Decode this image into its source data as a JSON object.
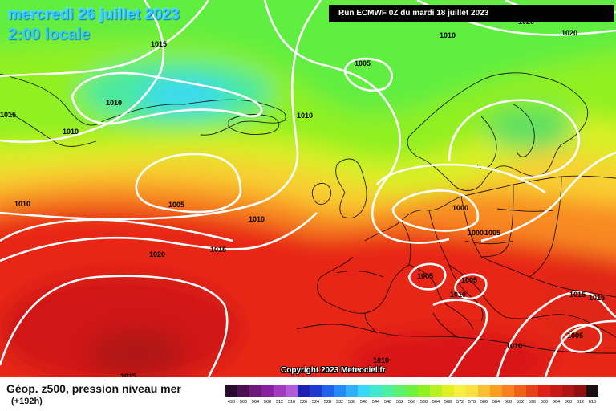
{
  "header": {
    "date": "mercredi 26 juillet 2023",
    "time": "2:00 locale",
    "run": "Run ECMWF 0Z du mardi 18 juillet 2023"
  },
  "footer": {
    "copyright": "Copyright 2023 Meteociel.fr"
  },
  "legend": {
    "title": "Géop. z500, pression niveau mer",
    "subtitle": "(+192h)",
    "steps": [
      {
        "label": "496",
        "color": "#2a0a2e"
      },
      {
        "label": "500",
        "color": "#4b1050"
      },
      {
        "label": "504",
        "color": "#6e1a7a"
      },
      {
        "label": "508",
        "color": "#8a1ea0"
      },
      {
        "label": "512",
        "color": "#a23ac0"
      },
      {
        "label": "516",
        "color": "#b25ad8"
      },
      {
        "label": "520",
        "color": "#2020b0"
      },
      {
        "label": "524",
        "color": "#2038d0"
      },
      {
        "label": "528",
        "color": "#2060ec"
      },
      {
        "label": "532",
        "color": "#2888f8"
      },
      {
        "label": "536",
        "color": "#30b0f8"
      },
      {
        "label": "540",
        "color": "#38d8f8"
      },
      {
        "label": "544",
        "color": "#40e8d0"
      },
      {
        "label": "548",
        "color": "#48f0a0"
      },
      {
        "label": "552",
        "color": "#60f070"
      },
      {
        "label": "556",
        "color": "#70f040"
      },
      {
        "label": "560",
        "color": "#90f020"
      },
      {
        "label": "564",
        "color": "#b8f020"
      },
      {
        "label": "568",
        "color": "#e0f020"
      },
      {
        "label": "572",
        "color": "#f8f040"
      },
      {
        "label": "576",
        "color": "#f8e040"
      },
      {
        "label": "580",
        "color": "#f8c030"
      },
      {
        "label": "584",
        "color": "#f8a020"
      },
      {
        "label": "588",
        "color": "#f88020"
      },
      {
        "label": "592",
        "color": "#f06018"
      },
      {
        "label": "596",
        "color": "#e84018"
      },
      {
        "label": "600",
        "color": "#e02018"
      },
      {
        "label": "604",
        "color": "#c81818"
      },
      {
        "label": "608",
        "color": "#b01414"
      },
      {
        "label": "612",
        "color": "#901010"
      },
      {
        "label": "616",
        "color": "#181010"
      }
    ]
  },
  "isobars": [
    "1015",
    "1020",
    "1005",
    "1010",
    "1015",
    "1010",
    "1010",
    "1010",
    "1005",
    "1010",
    "1015",
    "1020",
    "1000",
    "1000",
    "1005",
    "1005",
    "1005",
    "1010",
    "1010",
    "1015",
    "1015",
    "1005",
    "1010",
    "1010",
    "1015",
    "1020"
  ]
}
